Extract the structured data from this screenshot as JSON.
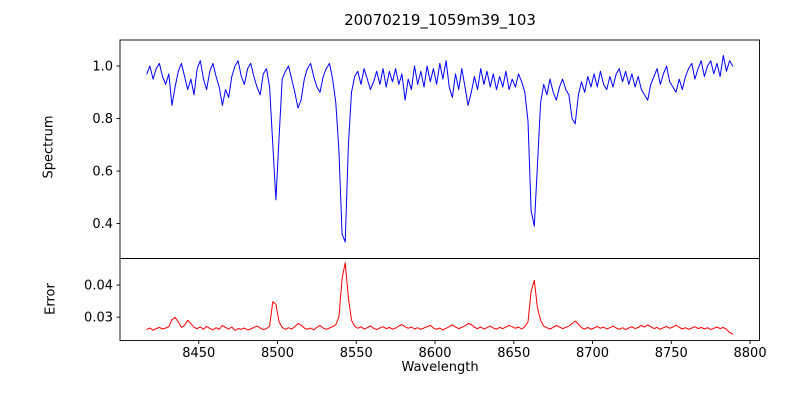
{
  "title": "20070219_1059m39_103",
  "x_axis": {
    "label": "Wavelength",
    "lim": [
      8400,
      8806
    ],
    "ticks": [
      8450,
      8500,
      8550,
      8600,
      8650,
      8700,
      8750,
      8800
    ],
    "tick_labels": [
      "8450",
      "8500",
      "8550",
      "8600",
      "8650",
      "8700",
      "8750",
      "8800"
    ]
  },
  "chart_data": [
    {
      "type": "line",
      "name": "spectrum",
      "ylabel": "Spectrum",
      "color": "#0000ff",
      "ylim": [
        0.267,
        1.099
      ],
      "yticks": [
        0.4,
        0.6,
        0.8,
        1.0
      ],
      "ytick_labels": [
        "0.4",
        "0.6",
        "0.8",
        "1.0"
      ],
      "grid": false,
      "absorption_line_minima": [
        {
          "wavelength": 8498,
          "flux": 0.49
        },
        {
          "wavelength": 8542,
          "flux": 0.31
        },
        {
          "wavelength": 8662,
          "flux": 0.39
        }
      ],
      "x_start": 8417,
      "x_step": 2,
      "values": [
        0.97,
        1.0,
        0.95,
        0.99,
        1.01,
        0.96,
        0.93,
        0.97,
        0.85,
        0.92,
        0.98,
        1.01,
        0.96,
        0.91,
        0.95,
        0.89,
        0.99,
        1.02,
        0.95,
        0.91,
        0.98,
        1.01,
        0.96,
        0.92,
        0.85,
        0.91,
        0.88,
        0.96,
        1.0,
        1.02,
        0.96,
        0.93,
        0.99,
        1.01,
        0.96,
        0.92,
        0.89,
        0.97,
        0.99,
        0.92,
        0.7,
        0.49,
        0.73,
        0.95,
        0.98,
        1.0,
        0.95,
        0.9,
        0.84,
        0.87,
        0.95,
        0.99,
        1.01,
        0.96,
        0.92,
        0.9,
        0.96,
        0.99,
        1.01,
        0.95,
        0.86,
        0.68,
        0.36,
        0.33,
        0.7,
        0.9,
        0.96,
        0.98,
        0.93,
        0.99,
        0.95,
        0.91,
        0.94,
        0.98,
        0.93,
        0.99,
        0.92,
        0.98,
        0.94,
        0.99,
        0.93,
        0.97,
        0.87,
        0.95,
        0.91,
        1.0,
        0.93,
        0.98,
        0.92,
        1.0,
        0.94,
        0.99,
        0.93,
        1.01,
        0.95,
        1.02,
        0.92,
        0.88,
        0.97,
        0.91,
        0.99,
        0.92,
        0.85,
        0.9,
        0.96,
        0.91,
        0.99,
        0.93,
        0.98,
        0.92,
        0.97,
        0.91,
        0.96,
        0.92,
        0.98,
        0.91,
        0.95,
        0.92,
        0.97,
        0.94,
        0.9,
        0.79,
        0.45,
        0.39,
        0.62,
        0.86,
        0.93,
        0.89,
        0.95,
        0.9,
        0.87,
        0.92,
        0.95,
        0.91,
        0.89,
        0.8,
        0.78,
        0.89,
        0.94,
        0.9,
        0.96,
        0.92,
        0.97,
        0.92,
        0.98,
        0.93,
        0.91,
        0.96,
        0.92,
        0.97,
        0.99,
        0.94,
        0.98,
        0.93,
        0.97,
        0.92,
        0.96,
        0.91,
        0.89,
        0.87,
        0.93,
        0.96,
        0.99,
        0.93,
        0.97,
        1.0,
        0.94,
        0.92,
        0.9,
        0.95,
        0.91,
        0.96,
        0.99,
        1.01,
        0.95,
        0.99,
        1.02,
        0.96,
        1.0,
        1.02,
        0.97,
        1.01,
        0.96,
        1.04,
        0.98,
        1.02,
        1.0
      ]
    },
    {
      "type": "line",
      "name": "error",
      "ylabel": "Error",
      "color": "#ff0000",
      "ylim": [
        0.0227,
        0.0483
      ],
      "yticks": [
        0.03,
        0.04
      ],
      "ytick_labels": [
        "0.03",
        "0.04"
      ],
      "grid": false,
      "peaks": [
        {
          "wavelength": 8498,
          "error": 0.035
        },
        {
          "wavelength": 8542,
          "error": 0.047
        },
        {
          "wavelength": 8662,
          "error": 0.042
        }
      ],
      "x_start": 8417,
      "x_step": 2,
      "values": [
        0.0262,
        0.0266,
        0.0259,
        0.0264,
        0.0268,
        0.0263,
        0.0266,
        0.027,
        0.0292,
        0.0299,
        0.0285,
        0.0268,
        0.0274,
        0.029,
        0.028,
        0.0268,
        0.0264,
        0.0269,
        0.0262,
        0.0271,
        0.0265,
        0.026,
        0.0267,
        0.0262,
        0.0274,
        0.0268,
        0.0263,
        0.0269,
        0.0259,
        0.0264,
        0.0262,
        0.0266,
        0.026,
        0.0263,
        0.0268,
        0.0272,
        0.0266,
        0.0261,
        0.0264,
        0.0272,
        0.0348,
        0.034,
        0.0285,
        0.0268,
        0.0262,
        0.0267,
        0.0263,
        0.027,
        0.028,
        0.0275,
        0.0266,
        0.0262,
        0.0266,
        0.026,
        0.0268,
        0.0274,
        0.0266,
        0.0262,
        0.0266,
        0.027,
        0.0276,
        0.03,
        0.042,
        0.047,
        0.036,
        0.029,
        0.0272,
        0.0265,
        0.027,
        0.0263,
        0.0267,
        0.0273,
        0.0265,
        0.0261,
        0.0266,
        0.027,
        0.0264,
        0.0268,
        0.0262,
        0.0266,
        0.0272,
        0.0277,
        0.027,
        0.0265,
        0.0269,
        0.0263,
        0.0267,
        0.0262,
        0.0266,
        0.027,
        0.0274,
        0.0266,
        0.0262,
        0.0266,
        0.026,
        0.0265,
        0.027,
        0.0276,
        0.0269,
        0.0264,
        0.0268,
        0.0273,
        0.028,
        0.0277,
        0.0268,
        0.0264,
        0.0269,
        0.0263,
        0.0267,
        0.0272,
        0.0266,
        0.0262,
        0.0268,
        0.0264,
        0.0269,
        0.0274,
        0.027,
        0.0265,
        0.0269,
        0.0263,
        0.027,
        0.0285,
        0.038,
        0.0415,
        0.033,
        0.029,
        0.0272,
        0.0267,
        0.0263,
        0.0268,
        0.0274,
        0.0269,
        0.0264,
        0.0268,
        0.0272,
        0.028,
        0.0288,
        0.0278,
        0.0267,
        0.0263,
        0.0268,
        0.0262,
        0.0266,
        0.0271,
        0.0265,
        0.0269,
        0.0263,
        0.0267,
        0.0272,
        0.0266,
        0.0262,
        0.0267,
        0.0261,
        0.0266,
        0.027,
        0.0264,
        0.0268,
        0.0274,
        0.0269,
        0.0276,
        0.027,
        0.0264,
        0.0268,
        0.0262,
        0.0267,
        0.0271,
        0.0265,
        0.0269,
        0.0275,
        0.0268,
        0.0263,
        0.0267,
        0.0262,
        0.0266,
        0.027,
        0.0264,
        0.0268,
        0.0263,
        0.0267,
        0.0261,
        0.0265,
        0.0269,
        0.0264,
        0.0268,
        0.0262,
        0.0252,
        0.0247
      ]
    }
  ]
}
